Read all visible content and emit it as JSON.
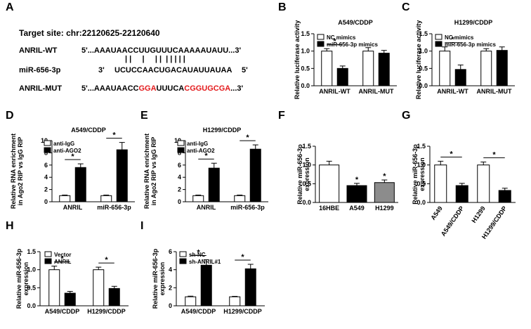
{
  "panel_letters": [
    "A",
    "B",
    "C",
    "D",
    "E",
    "F",
    "G",
    "H",
    "I"
  ],
  "panel_a": {
    "target_site": "Target site: chr:22120625-22120640",
    "wt_label": "ANRIL-WT",
    "wt_seq": "5'...AAAUAACCUUGUUUCAAAAAUAUU...3'",
    "bars": "| |     |     | |  | | | | |",
    "mir_label": "miR-656-3p",
    "mir_seq_a": "3'",
    "mir_seq_b": "UCUCCAACUGACAUAUUAUAA",
    "mir_seq_c": "5'",
    "mut_label": "ANRIL-MUT",
    "mut_seq_1": "5'...AAAUAACC",
    "mut_seq_2": "GGA",
    "mut_seq_3": "UUUCA",
    "mut_seq_4": "CGGUGCGA",
    "mut_seq_5": "...3'",
    "mutation_color": "#e31a1c"
  },
  "colors": {
    "open": "#ffffff",
    "filled": "#000000",
    "gray": "#8c8c8c"
  },
  "chart_data": [
    {
      "panel": "B",
      "type": "bar",
      "title": "A549/CDDP",
      "ylabel": "Relative luciferase activity",
      "ylim": [
        0,
        1.5
      ],
      "yticks": [
        "0.0",
        "0.5",
        "1.0",
        "1.5"
      ],
      "categories": [
        "ANRIL-WT",
        "ANRIL-MUT"
      ],
      "series": [
        {
          "name": "NC mimics",
          "fill": "open",
          "values": [
            1.0,
            1.0
          ],
          "errors": [
            0.07,
            0.1
          ]
        },
        {
          "name": "miR-656-3p mimics",
          "fill": "filled",
          "values": [
            0.5,
            0.94
          ],
          "errors": [
            0.07,
            0.08
          ]
        }
      ],
      "sig": [
        {
          "category": 0,
          "text": "*"
        }
      ],
      "legend": "top-left"
    },
    {
      "panel": "C",
      "type": "bar",
      "title": "H1299/CDDP",
      "ylabel": "Relative luciferase activity",
      "ylim": [
        0,
        1.5
      ],
      "yticks": [
        "0.0",
        "0.5",
        "1.0",
        "1.5"
      ],
      "categories": [
        "ANRIL-WT",
        "ANRIL-MUT"
      ],
      "series": [
        {
          "name": "NC mimics",
          "fill": "open",
          "values": [
            1.0,
            1.0
          ],
          "errors": [
            0.12,
            0.07
          ]
        },
        {
          "name": "miR-656-3p mimics",
          "fill": "filled",
          "values": [
            0.47,
            1.02
          ],
          "errors": [
            0.13,
            0.1
          ]
        }
      ],
      "sig": [
        {
          "category": 0,
          "text": "*"
        }
      ],
      "legend": "top-left"
    },
    {
      "panel": "D",
      "type": "bar",
      "title": "A549/CDDP",
      "ylabel": "Relative RNA enrichment in Ago2 RIP vs IgG RIP",
      "ylim": [
        0,
        10
      ],
      "yticks": [
        "0",
        "2",
        "4",
        "6",
        "8",
        "10"
      ],
      "categories": [
        "ANRIL",
        "miR-656-3p"
      ],
      "series": [
        {
          "name": "anti-IgG",
          "fill": "open",
          "values": [
            1.0,
            1.0
          ],
          "errors": [
            0.1,
            0.1
          ]
        },
        {
          "name": "anti-AGO2",
          "fill": "filled",
          "values": [
            5.6,
            8.5
          ],
          "errors": [
            0.6,
            1.2
          ]
        }
      ],
      "sig": [
        {
          "category": 0,
          "text": "*"
        },
        {
          "category": 1,
          "text": "*"
        }
      ],
      "legend": "top-left"
    },
    {
      "panel": "E",
      "type": "bar",
      "title": "H1299/CDDP",
      "ylabel": "Relative RNA enrichment in Ago2 RIP vs IgG RIP",
      "ylim": [
        0,
        10
      ],
      "yticks": [
        "0",
        "2",
        "4",
        "6",
        "8",
        "10"
      ],
      "categories": [
        "ANRIL",
        "miR-656-3p"
      ],
      "series": [
        {
          "name": "anti-IgG",
          "fill": "open",
          "values": [
            1.0,
            1.0
          ],
          "errors": [
            0.1,
            0.1
          ]
        },
        {
          "name": "anti-AGO2",
          "fill": "filled",
          "values": [
            5.5,
            8.6
          ],
          "errors": [
            0.8,
            0.7
          ]
        }
      ],
      "sig": [
        {
          "category": 0,
          "text": "*"
        },
        {
          "category": 1,
          "text": "*"
        }
      ],
      "legend": "top-left"
    },
    {
      "panel": "F",
      "type": "bar",
      "ylabel": "Relative miR-656-3p expression",
      "ylim": [
        0,
        1.5
      ],
      "yticks": [
        "0.0",
        "0.5",
        "1.0",
        "1.5"
      ],
      "categories": [
        "16HBE",
        "A549",
        "H1299"
      ],
      "values": [
        1.0,
        0.45,
        0.53
      ],
      "errors": [
        0.1,
        0.06,
        0.07
      ],
      "fills": [
        "open",
        "filled",
        "gray"
      ],
      "sig_text": [
        "",
        "*",
        "*"
      ]
    },
    {
      "panel": "G",
      "type": "bar",
      "ylabel": "Relative miR-656-3p expression",
      "ylim": [
        0,
        1.5
      ],
      "yticks": [
        "0.0",
        "0.5",
        "1.0",
        "1.5"
      ],
      "categories": [
        "A549",
        "A549/CDDP",
        "H1299",
        "H1299/CDDP"
      ],
      "values": [
        1.0,
        0.45,
        1.0,
        0.32
      ],
      "errors": [
        0.1,
        0.06,
        0.08,
        0.06
      ],
      "fills": [
        "open",
        "filled",
        "open",
        "filled"
      ],
      "brackets": [
        {
          "from": 0,
          "to": 1,
          "text": "*"
        },
        {
          "from": 2,
          "to": 3,
          "text": "*"
        }
      ]
    },
    {
      "panel": "H",
      "type": "bar",
      "ylabel": "Relative miR-656-3p expression",
      "ylim": [
        0,
        1.5
      ],
      "yticks": [
        "0.0",
        "0.5",
        "1.0",
        "1.5"
      ],
      "categories": [
        "A549/CDDP",
        "H1299/CDDP"
      ],
      "series": [
        {
          "name": "Vector",
          "fill": "open",
          "values": [
            1.0,
            1.0
          ],
          "errors": [
            0.1,
            0.07
          ]
        },
        {
          "name": "ANRIL",
          "fill": "filled",
          "values": [
            0.35,
            0.48
          ],
          "errors": [
            0.05,
            0.06
          ]
        }
      ],
      "sig": [
        {
          "category": 0,
          "text": "*"
        },
        {
          "category": 1,
          "text": "*"
        }
      ],
      "legend": "top-left"
    },
    {
      "panel": "I",
      "type": "bar",
      "ylabel": "Relative miR-656-3p expression",
      "ylim": [
        0,
        6
      ],
      "yticks": [
        "0",
        "2",
        "4",
        "6"
      ],
      "categories": [
        "A549/CDDP",
        "H1299/CDDP"
      ],
      "series": [
        {
          "name": "sh-NC",
          "fill": "open",
          "values": [
            1.0,
            1.0
          ],
          "errors": [
            0.07,
            0.05
          ]
        },
        {
          "name": "sh-ANRIL#1",
          "fill": "filled",
          "values": [
            4.5,
            4.1
          ],
          "errors": [
            0.6,
            0.5
          ]
        }
      ],
      "sig": [
        {
          "category": 0,
          "text": "*"
        },
        {
          "category": 1,
          "text": "*"
        }
      ],
      "legend": "top-left"
    }
  ]
}
